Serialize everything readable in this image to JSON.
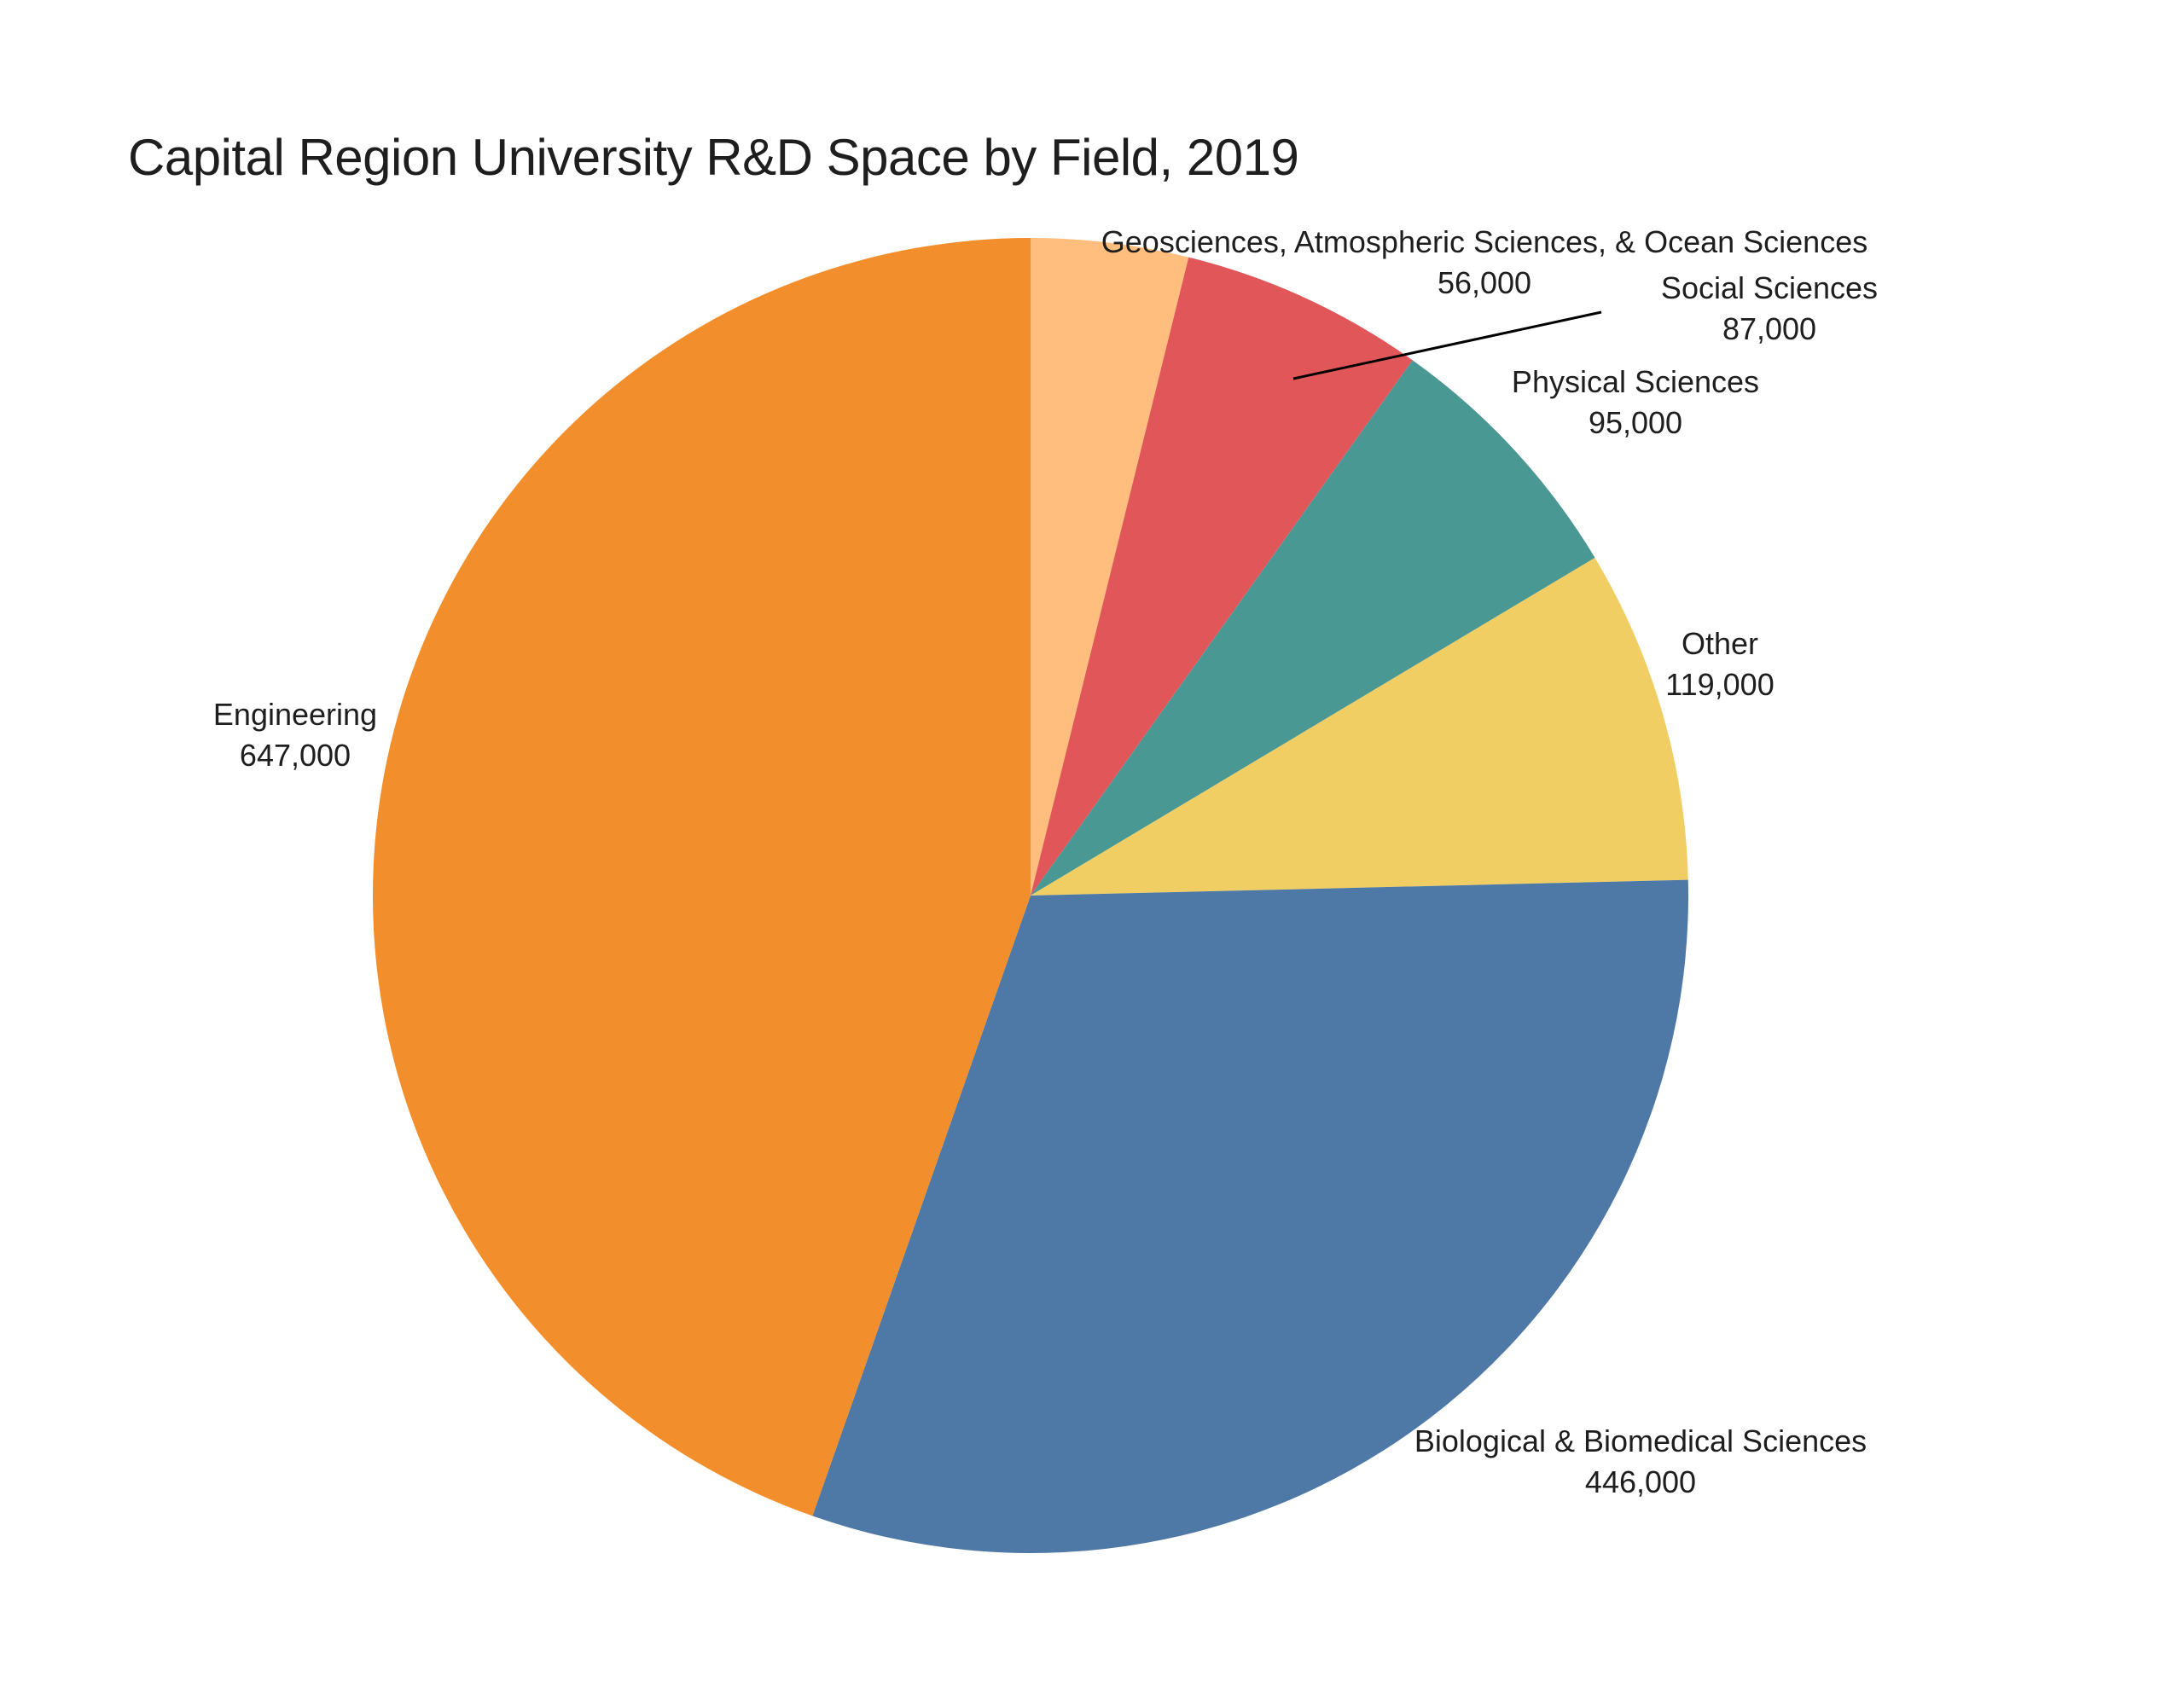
{
  "title": "Capital Region University R&D Space by Field, 2019",
  "chart_data": {
    "type": "pie",
    "title": "Capital Region University R&D Space by Field, 2019",
    "start_angle_deg": 0,
    "direction": "clockwise",
    "legend": "none",
    "label_style": "outside labels with category name and value",
    "slices": [
      {
        "label": "Geosciences, Atmospheric Sciences, & Ocean Sciences",
        "value": 56000,
        "display_value": "56,000",
        "color": "#FFBE7D"
      },
      {
        "label": "Social Sciences",
        "value": 87000,
        "display_value": "87,000",
        "color": "#E15759"
      },
      {
        "label": "Physical Sciences",
        "value": 95000,
        "display_value": "95,000",
        "color": "#499894"
      },
      {
        "label": "Other",
        "value": 119000,
        "display_value": "119,000",
        "color": "#F1CE63"
      },
      {
        "label": "Biological & Biomedical Sciences",
        "value": 446000,
        "display_value": "446,000",
        "color": "#4E79A7"
      },
      {
        "label": "Engineering",
        "value": 647000,
        "display_value": "647,000",
        "color": "#F28E2B"
      }
    ],
    "leader_line": {
      "connects": "Social Sciences slice to its label",
      "color": "#000000"
    }
  }
}
